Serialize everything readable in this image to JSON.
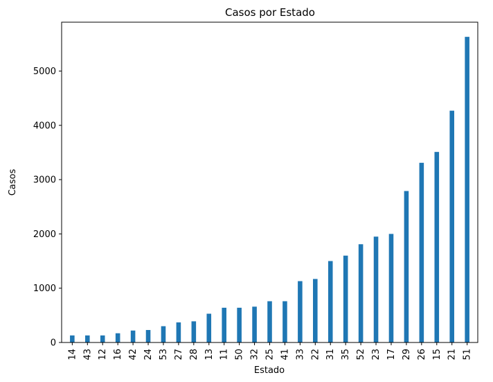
{
  "chart_data": {
    "type": "bar",
    "title": "Casos por Estado",
    "xlabel": "Estado",
    "ylabel": "Casos",
    "categories": [
      "14",
      "43",
      "12",
      "16",
      "42",
      "24",
      "53",
      "27",
      "28",
      "13",
      "11",
      "50",
      "32",
      "25",
      "41",
      "33",
      "22",
      "31",
      "35",
      "52",
      "23",
      "17",
      "29",
      "26",
      "15",
      "21",
      "51"
    ],
    "values": [
      130,
      130,
      130,
      170,
      220,
      230,
      300,
      370,
      390,
      530,
      640,
      640,
      660,
      760,
      760,
      1130,
      1170,
      1500,
      1600,
      1810,
      1950,
      2000,
      2790,
      3310,
      3510,
      4270,
      5630
    ],
    "ylim": [
      0,
      5900
    ],
    "yticks": [
      0,
      1000,
      2000,
      3000,
      4000,
      5000
    ],
    "grid": false,
    "legend": "none",
    "bar_color": "#1f77b4"
  }
}
